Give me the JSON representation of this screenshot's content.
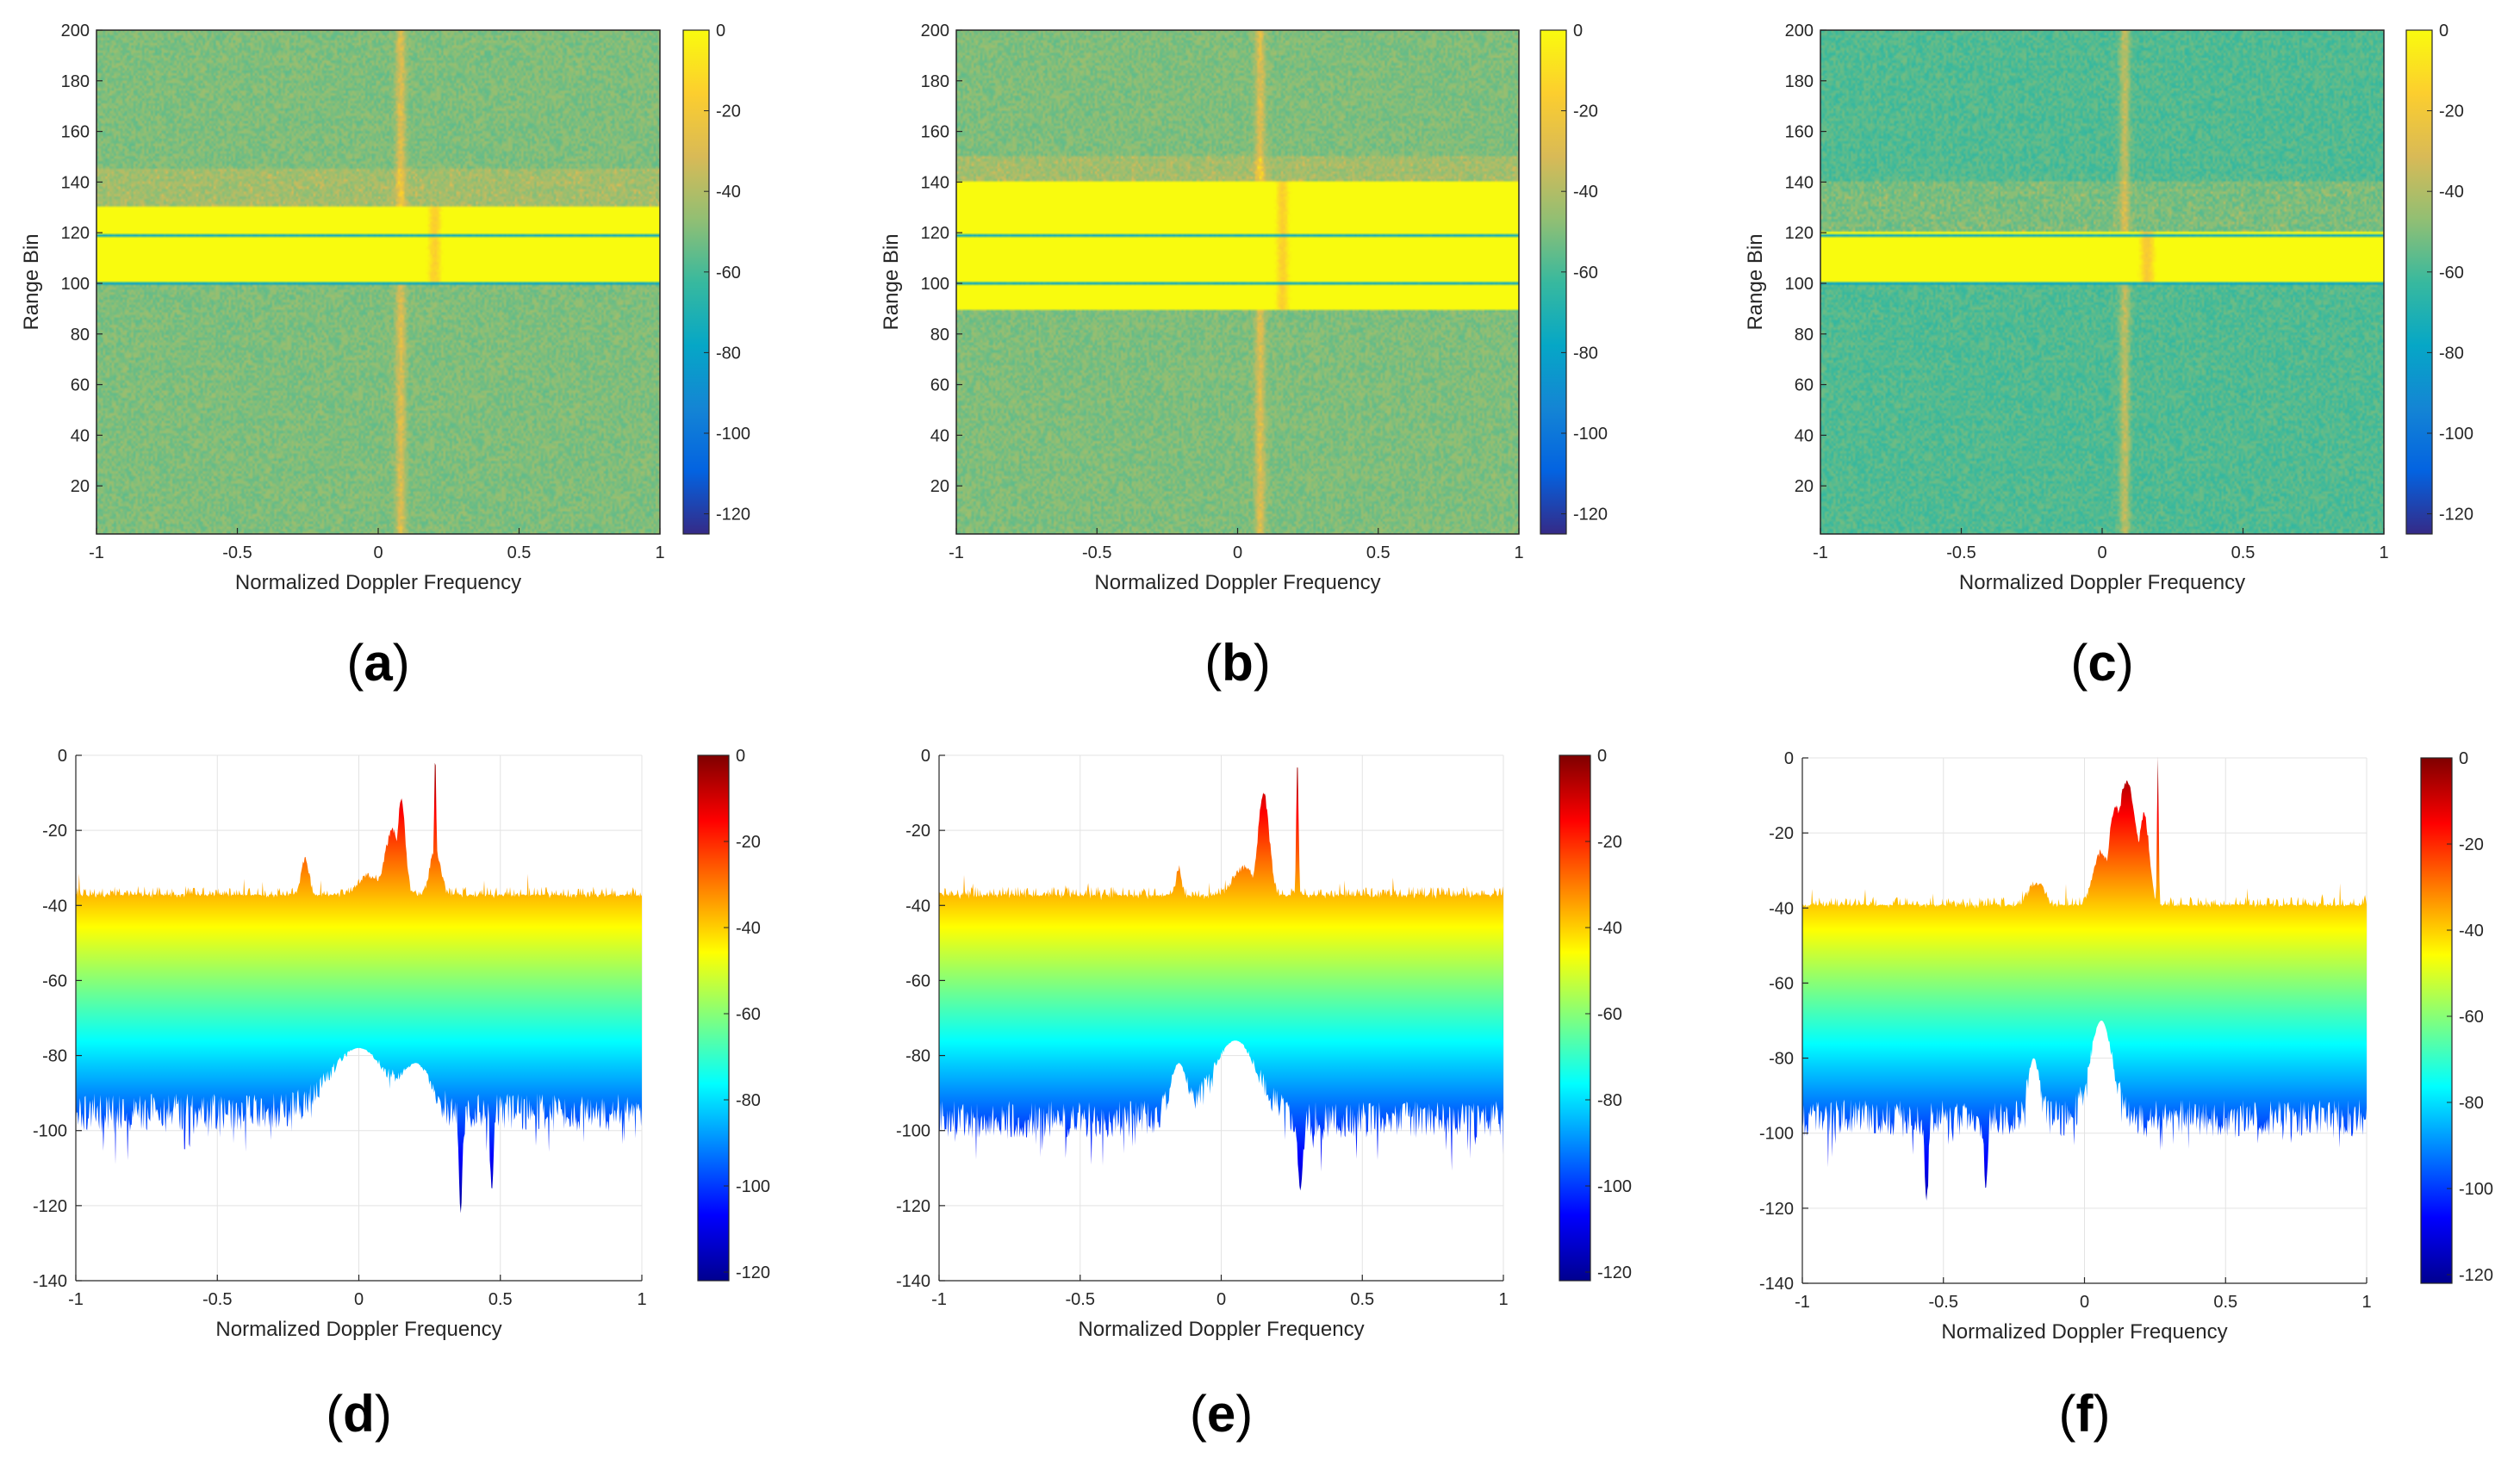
{
  "figure": {
    "panels": [
      "(a)",
      "(b)",
      "(c)",
      "(d)",
      "(e)",
      "(f)"
    ]
  },
  "colors": {
    "parula": [
      "#352a87",
      "#0363e1",
      "#1485d4",
      "#06a7c6",
      "#38b99e",
      "#92bf73",
      "#d9ba56",
      "#fcce2e",
      "#f9fb0e"
    ],
    "jet": [
      "#00008f",
      "#0000ff",
      "#007fff",
      "#00ffff",
      "#7fff7f",
      "#ffff00",
      "#ff7f00",
      "#ff0000",
      "#7f0000"
    ]
  },
  "chart_data": [
    {
      "panel": "a",
      "caption_letter": "a",
      "type": "heatmap",
      "title": "",
      "xlabel": "Normalized Doppler Frequency",
      "ylabel": "Range Bin",
      "xlim": [
        -1,
        1
      ],
      "ylim": [
        1,
        200
      ],
      "xticks": [
        "-1",
        "-0.5",
        "0",
        "0.5",
        "1"
      ],
      "yticks": [
        "20",
        "40",
        "60",
        "80",
        "100",
        "120",
        "140",
        "160",
        "180",
        "200"
      ],
      "colorbar": {
        "colormap": "parula",
        "clim": [
          -125,
          0
        ],
        "ticks": [
          "0",
          "-20",
          "-40",
          "-60",
          "-80",
          "-100",
          "-120"
        ]
      },
      "features": {
        "background_db": -50,
        "clutter_ridge_doppler": 0.08,
        "bright_band_range": [
          105,
          145
        ],
        "dark_line_range_bins": [
          100,
          119
        ],
        "target_doppler": 0.2,
        "target_range": [
          100,
          130
        ],
        "target_db": -15
      }
    },
    {
      "panel": "b",
      "caption_letter": "b",
      "type": "heatmap",
      "title": "",
      "xlabel": "Normalized Doppler Frequency",
      "ylabel": "Range Bin",
      "xlim": [
        -1,
        1
      ],
      "ylim": [
        1,
        200
      ],
      "xticks": [
        "-1",
        "-0.5",
        "0",
        "0.5",
        "1"
      ],
      "yticks": [
        "20",
        "40",
        "60",
        "80",
        "100",
        "120",
        "140",
        "160",
        "180",
        "200"
      ],
      "colorbar": {
        "colormap": "parula",
        "clim": [
          -125,
          0
        ],
        "ticks": [
          "0",
          "-20",
          "-40",
          "-60",
          "-80",
          "-100",
          "-120"
        ]
      },
      "features": {
        "background_db": -50,
        "clutter_ridge_doppler": 0.08,
        "bright_band_range": [
          100,
          150
        ],
        "dark_line_range_bins": [
          100,
          119
        ],
        "target_doppler": 0.16,
        "target_range": [
          90,
          140
        ],
        "target_db": -15
      }
    },
    {
      "panel": "c",
      "caption_letter": "c",
      "type": "heatmap",
      "title": "",
      "xlabel": "Normalized Doppler Frequency",
      "ylabel": "Range Bin",
      "xlim": [
        -1,
        1
      ],
      "ylim": [
        1,
        200
      ],
      "xticks": [
        "-1",
        "-0.5",
        "0",
        "0.5",
        "1"
      ],
      "yticks": [
        "20",
        "40",
        "60",
        "80",
        "100",
        "120",
        "140",
        "160",
        "180",
        "200"
      ],
      "colorbar": {
        "colormap": "parula",
        "clim": [
          -125,
          0
        ],
        "ticks": [
          "0",
          "-20",
          "-40",
          "-60",
          "-80",
          "-100",
          "-120"
        ]
      },
      "features": {
        "background_db": -58,
        "clutter_ridge_doppler": 0.08,
        "bright_band_range": [
          120,
          140
        ],
        "dark_line_range_bins": [
          100,
          119
        ],
        "target_doppler": 0.16,
        "target_range": [
          100,
          120
        ],
        "target_db": -18
      }
    },
    {
      "panel": "d",
      "caption_letter": "d",
      "type": "area",
      "title": "",
      "xlabel": "Normalized Doppler Frequency",
      "ylabel": "",
      "xlim": [
        -1,
        1
      ],
      "ylim": [
        -140,
        0
      ],
      "xticks": [
        "-1",
        "-0.5",
        "0",
        "0.5",
        "1"
      ],
      "yticks": [
        "0",
        "-20",
        "-40",
        "-60",
        "-80",
        "-100",
        "-120",
        "-140"
      ],
      "colorbar": {
        "colormap": "jet",
        "clim": [
          -122,
          0
        ],
        "ticks": [
          "0",
          "-20",
          "-40",
          "-60",
          "-80",
          "-100",
          "-120"
        ]
      },
      "top_envelope": {
        "baseline": -38,
        "peaks": [
          [
            -0.19,
            -28,
            0.015
          ],
          [
            0.04,
            -32,
            0.05
          ],
          [
            0.12,
            -20,
            0.03
          ],
          [
            0.15,
            -12,
            0.015
          ],
          [
            0.27,
            0,
            0.004
          ],
          [
            0.27,
            -25,
            0.02
          ]
        ]
      },
      "bottom_envelope": {
        "baseline": -95,
        "dips": [
          [
            0.0,
            -78,
            0.1
          ],
          [
            0.2,
            -82,
            0.05
          ],
          [
            0.36,
            -122,
            0.006
          ],
          [
            0.47,
            -116,
            0.006
          ]
        ]
      }
    },
    {
      "panel": "e",
      "caption_letter": "e",
      "type": "area",
      "title": "",
      "xlabel": "Normalized Doppler Frequency",
      "ylabel": "",
      "xlim": [
        -1,
        1
      ],
      "ylim": [
        -140,
        0
      ],
      "xticks": [
        "-1",
        "-0.5",
        "0",
        "0.5",
        "1"
      ],
      "yticks": [
        "0",
        "-20",
        "-40",
        "-60",
        "-80",
        "-100",
        "-120",
        "-140"
      ],
      "colorbar": {
        "colormap": "jet",
        "clim": [
          -122,
          0
        ],
        "ticks": [
          "0",
          "-20",
          "-40",
          "-60",
          "-80",
          "-100",
          "-120"
        ]
      },
      "top_envelope": {
        "baseline": -38,
        "peaks": [
          [
            -0.15,
            -30,
            0.01
          ],
          [
            0.08,
            -30,
            0.04
          ],
          [
            0.15,
            -10,
            0.02
          ],
          [
            0.27,
            0,
            0.004
          ]
        ]
      },
      "bottom_envelope": {
        "baseline": -97,
        "dips": [
          [
            0.05,
            -76,
            0.08
          ],
          [
            0.28,
            -116,
            0.008
          ],
          [
            -0.15,
            -82,
            0.03
          ]
        ]
      }
    },
    {
      "panel": "f",
      "caption_letter": "f",
      "type": "area",
      "title": "",
      "xlabel": "Normalized Doppler Frequency",
      "ylabel": "",
      "xlim": [
        -1,
        1
      ],
      "ylim": [
        -140,
        0
      ],
      "xticks": [
        "-1",
        "-0.5",
        "0",
        "0.5",
        "1"
      ],
      "yticks": [
        "0",
        "-20",
        "-40",
        "-60",
        "-80",
        "-100",
        "-120",
        "-140"
      ],
      "colorbar": {
        "colormap": "jet",
        "clim": [
          -122,
          0
        ],
        "ticks": [
          "0",
          "-20",
          "-40",
          "-60",
          "-80",
          "-100",
          "-120"
        ]
      },
      "top_envelope": {
        "baseline": -40,
        "peaks": [
          [
            -0.17,
            -33,
            0.03
          ],
          [
            0.06,
            -25,
            0.03
          ],
          [
            0.11,
            -13,
            0.025
          ],
          [
            0.15,
            -6,
            0.035
          ],
          [
            0.21,
            -15,
            0.02
          ],
          [
            0.26,
            0,
            0.003
          ]
        ]
      },
      "bottom_envelope": {
        "baseline": -96,
        "dips": [
          [
            0.06,
            -70,
            0.04
          ],
          [
            -0.18,
            -80,
            0.02
          ],
          [
            -0.56,
            -118,
            0.006
          ],
          [
            -0.35,
            -115,
            0.006
          ]
        ]
      }
    }
  ]
}
